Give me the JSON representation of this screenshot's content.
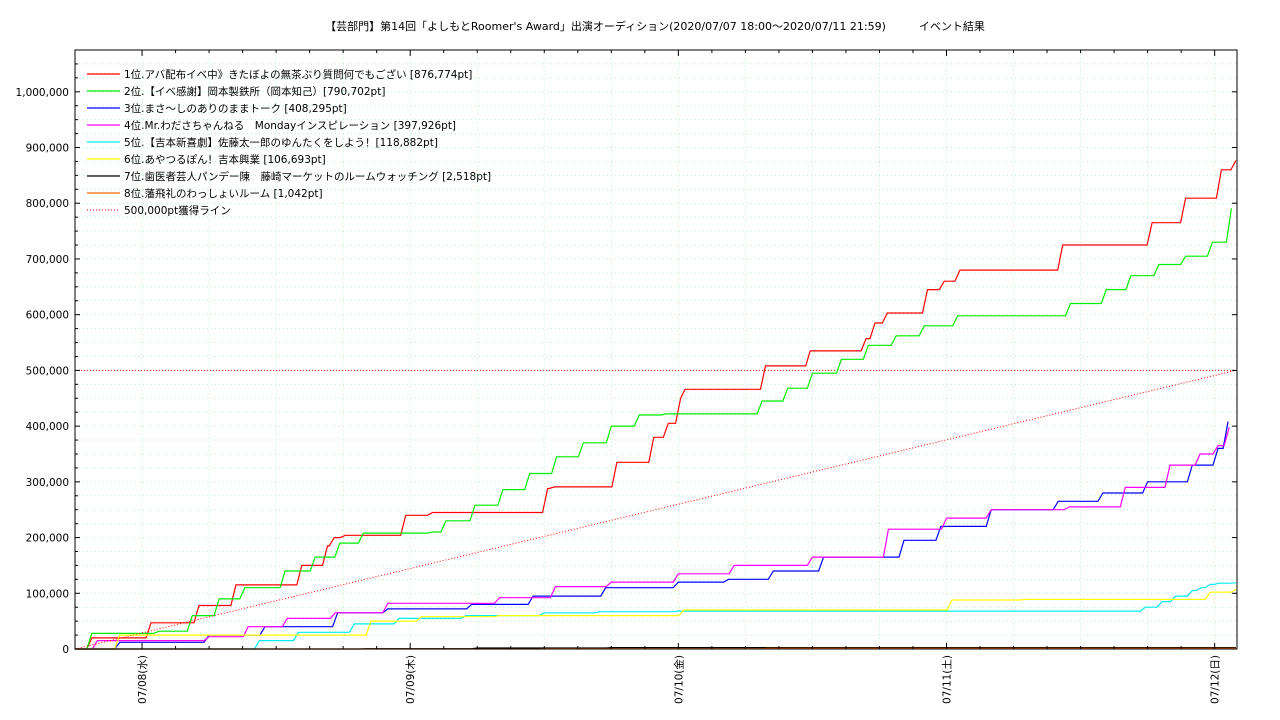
{
  "chart_data": {
    "type": "line",
    "title": "【芸部門】第14回「よしもとRoomer's Award」出演オーディション(2020/07/07 18:00～2020/07/11 21:59)　　　イベント結果",
    "xlabel": "",
    "ylabel": "",
    "ylim": [
      0,
      1075000
    ],
    "y_ticks": [
      0,
      100000,
      200000,
      300000,
      400000,
      500000,
      600000,
      700000,
      800000,
      900000,
      1000000
    ],
    "y_tick_labels": [
      "0",
      "100,000",
      "200,000",
      "300,000",
      "400,000",
      "500,000",
      "600,000",
      "700,000",
      "800,000",
      "900,000",
      "1,000,000"
    ],
    "x_unit": "hours since 2020/07/07 00:00",
    "x_range": [
      18,
      122
    ],
    "x_ticks": [
      24,
      48,
      72,
      96,
      120
    ],
    "x_tick_labels": [
      "07/08(水)",
      "07/09(木)",
      "07/10(金)",
      "07/11(土)",
      "07/12(日)"
    ],
    "grid": true,
    "legend_position": "top-left",
    "series": [
      {
        "name": "1位.アバ配布イベ中》きたぼよの無茶ぶり質問何でもござい [876,774pt]",
        "color": "#ff0000",
        "step": true,
        "x": [
          18,
          19.5,
          24.8,
          29.1,
          32.4,
          38.3,
          40.6,
          41.2,
          42.2,
          44.4,
          47.6,
          50,
          60.3,
          60.9,
          63.1,
          66.5,
          69.8,
          71.1,
          72.2,
          72.6,
          78.8,
          79.8,
          83.4,
          83.8,
          88.8,
          89.6,
          90.7,
          92.8,
          94.3,
          95.8,
          97.2,
          105.3,
          106.4,
          114.4,
          116.1,
          117.4,
          119.8,
          120.6,
          121.9
        ],
        "y": [
          0,
          20000,
          47000,
          78000,
          115000,
          150000,
          185000,
          200000,
          204000,
          204000,
          240000,
          245000,
          288000,
          291000,
          291000,
          335000,
          380000,
          405000,
          450000,
          466000,
          466000,
          508000,
          508000,
          535000,
          557000,
          585000,
          603000,
          603000,
          645000,
          660000,
          680000,
          680000,
          725000,
          765000,
          765000,
          809000,
          809000,
          860000,
          876774
        ]
      },
      {
        "name": "2位.【イベ感謝】岡本製鉄所（岡本知己）[790,702pt]",
        "color": "#00ee00",
        "step": true,
        "x": [
          18,
          19.5,
          25.5,
          28.5,
          30.9,
          33.2,
          36.8,
          39.5,
          41.7,
          43.8,
          50,
          51.2,
          53.8,
          56.3,
          58.7,
          61.1,
          63.5,
          66,
          68.5,
          70.9,
          73.3,
          79.5,
          81.8,
          84,
          86.6,
          89,
          91.5,
          94,
          97,
          104.7,
          107.1,
          110.3,
          112.5,
          115,
          117.4,
          119.8,
          121.5
        ],
        "y": [
          0,
          28000,
          32000,
          60000,
          90000,
          110000,
          140000,
          165000,
          190000,
          208000,
          210000,
          230000,
          258000,
          286000,
          315000,
          345000,
          370000,
          400000,
          420000,
          422000,
          422000,
          445000,
          468000,
          495000,
          520000,
          545000,
          562000,
          580000,
          598000,
          598000,
          620000,
          645000,
          670000,
          690000,
          705000,
          730000,
          790702
        ]
      },
      {
        "name": "3位.まさ～しのありのままトーク [408,295pt]",
        "color": "#0000ff",
        "step": true,
        "x": [
          18,
          22,
          30,
          35,
          41.5,
          46,
          53.5,
          59,
          65.5,
          72,
          76.5,
          80.5,
          85,
          92.2,
          95.5,
          100,
          106,
          110,
          114,
          118,
          120.3,
          121.2
        ],
        "y": [
          0,
          12000,
          25000,
          40000,
          65000,
          72000,
          80000,
          95000,
          110000,
          120000,
          125000,
          140000,
          165000,
          195000,
          220000,
          250000,
          265000,
          280000,
          300000,
          330000,
          360000,
          408295
        ]
      },
      {
        "name": "4位.Mr.わださちゃんねる　Mondayインスピレーション [397,926pt]",
        "color": "#ff00ff",
        "step": true,
        "x": [
          18,
          20,
          30,
          33.5,
          37,
          41.3,
          46,
          56,
          61,
          66,
          72,
          77,
          84,
          90.8,
          96,
          100,
          107,
          112,
          116,
          118.7,
          120.3,
          121.3
        ],
        "y": [
          0,
          15000,
          22000,
          40000,
          55000,
          65000,
          82000,
          92000,
          112000,
          120000,
          135000,
          150000,
          165000,
          215000,
          235000,
          250000,
          255000,
          290000,
          330000,
          350000,
          365000,
          397926
        ]
      },
      {
        "name": "5位.【吉本新喜劇】佐藤太一郎のゆんたくをしよう！[118,882pt]",
        "color": "#00eeee",
        "step": true,
        "x": [
          18,
          33,
          34.5,
          38,
          43,
          47,
          53,
          60,
          65,
          72,
          112,
          113.8,
          115.3,
          116.5,
          118,
          118.8,
          119.6,
          120.4,
          121.9
        ],
        "y": [
          0,
          0,
          15000,
          30000,
          45000,
          55000,
          60000,
          65000,
          67000,
          68000,
          68000,
          75000,
          85000,
          95000,
          105000,
          110000,
          116000,
          118000,
          118882
        ]
      },
      {
        "name": "6位.あやつるぽん！吉本興業 [106,693pt]",
        "color": "#ffff00",
        "step": true,
        "x": [
          18,
          22,
          43.3,
          44.5,
          49,
          56,
          59.5,
          71.5,
          72.5,
          95.9,
          96.5,
          103,
          118.9,
          119.6,
          121.9
        ],
        "y": [
          0,
          25000,
          25000,
          50000,
          58000,
          60000,
          60000,
          60000,
          70000,
          70000,
          88000,
          89000,
          89000,
          102000,
          106693
        ]
      },
      {
        "name": "7位.歯医者芸人パンデー陳　藤崎マーケットのルームウォッチング [2,518pt]",
        "color": "#000000",
        "step": true,
        "x": [
          18,
          44,
          54,
          66,
          121.9
        ],
        "y": [
          0,
          600,
          1800,
          2518,
          2518
        ]
      },
      {
        "name": "8位.藩飛礼のわっしょいルーム [1,042pt]",
        "color": "#ff6600",
        "step": true,
        "x": [
          18,
          60,
          80,
          121.9
        ],
        "y": [
          0,
          500,
          1042,
          1042
        ]
      },
      {
        "name": "500,000pt獲得ライン",
        "color": "#ff0000",
        "dotted": true,
        "step": false,
        "x": [
          18,
          121.9
        ],
        "y": [
          0,
          500000
        ]
      }
    ]
  }
}
